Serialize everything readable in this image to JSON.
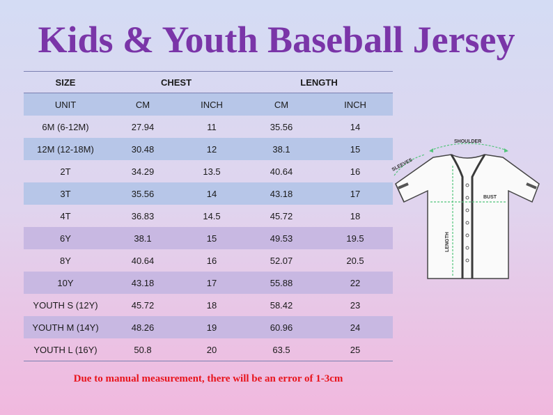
{
  "title": "Kids & Youth Baseball Jersey",
  "table": {
    "group_headers": {
      "size": "SIZE",
      "chest": "CHEST",
      "length": "LENGTH"
    },
    "unit_row": [
      "UNIT",
      "CM",
      "INCH",
      "CM",
      "INCH"
    ],
    "rows": [
      [
        "6M (6-12M)",
        "27.94",
        "11",
        "35.56",
        "14"
      ],
      [
        "12M (12-18M)",
        "30.48",
        "12",
        "38.1",
        "15"
      ],
      [
        "2T",
        "34.29",
        "13.5",
        "40.64",
        "16"
      ],
      [
        "3T",
        "35.56",
        "14",
        "43.18",
        "17"
      ],
      [
        "4T",
        "36.83",
        "14.5",
        "45.72",
        "18"
      ],
      [
        "6Y",
        "38.1",
        "15",
        "49.53",
        "19.5"
      ],
      [
        "8Y",
        "40.64",
        "16",
        "52.07",
        "20.5"
      ],
      [
        "10Y",
        "43.18",
        "17",
        "55.88",
        "22"
      ],
      [
        "YOUTH S (12Y)",
        "45.72",
        "18",
        "58.42",
        "23"
      ],
      [
        "YOUTH M (14Y)",
        "48.26",
        "19",
        "60.96",
        "24"
      ],
      [
        "YOUTH L (16Y)",
        "50.8",
        "20",
        "63.5",
        "25"
      ]
    ]
  },
  "note": "Due to manual measurement, there will be an error of 1-3cm",
  "diagram": {
    "shoulder_label": "SHOULDER",
    "sleeves_label": "SLEEVES",
    "bust_label": "BUST",
    "length_label": "LENGTH"
  },
  "colors": {
    "title": "#7a35a8",
    "note": "#e8141c",
    "band_blue": "#b7c6e8",
    "band_purple": "#c8b8e2",
    "measure_line": "#52c47a"
  }
}
